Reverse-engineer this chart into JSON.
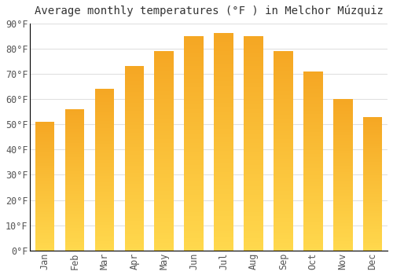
{
  "title": "Average monthly temperatures (°F ) in Melchor Múzquiz",
  "months": [
    "Jan",
    "Feb",
    "Mar",
    "Apr",
    "May",
    "Jun",
    "Jul",
    "Aug",
    "Sep",
    "Oct",
    "Nov",
    "Dec"
  ],
  "values": [
    51,
    56,
    64,
    73,
    79,
    85,
    86,
    85,
    79,
    71,
    60,
    53
  ],
  "bar_color_top": "#F5A623",
  "bar_color_bottom": "#FFD84D",
  "background_color": "#FFFFFF",
  "plot_bg_color": "#FFFFFF",
  "grid_color": "#E0E0E0",
  "ylim": [
    0,
    90
  ],
  "yticks": [
    0,
    10,
    20,
    30,
    40,
    50,
    60,
    70,
    80,
    90
  ],
  "title_fontsize": 10,
  "tick_fontsize": 8.5,
  "font_family": "monospace",
  "bar_width": 0.65
}
